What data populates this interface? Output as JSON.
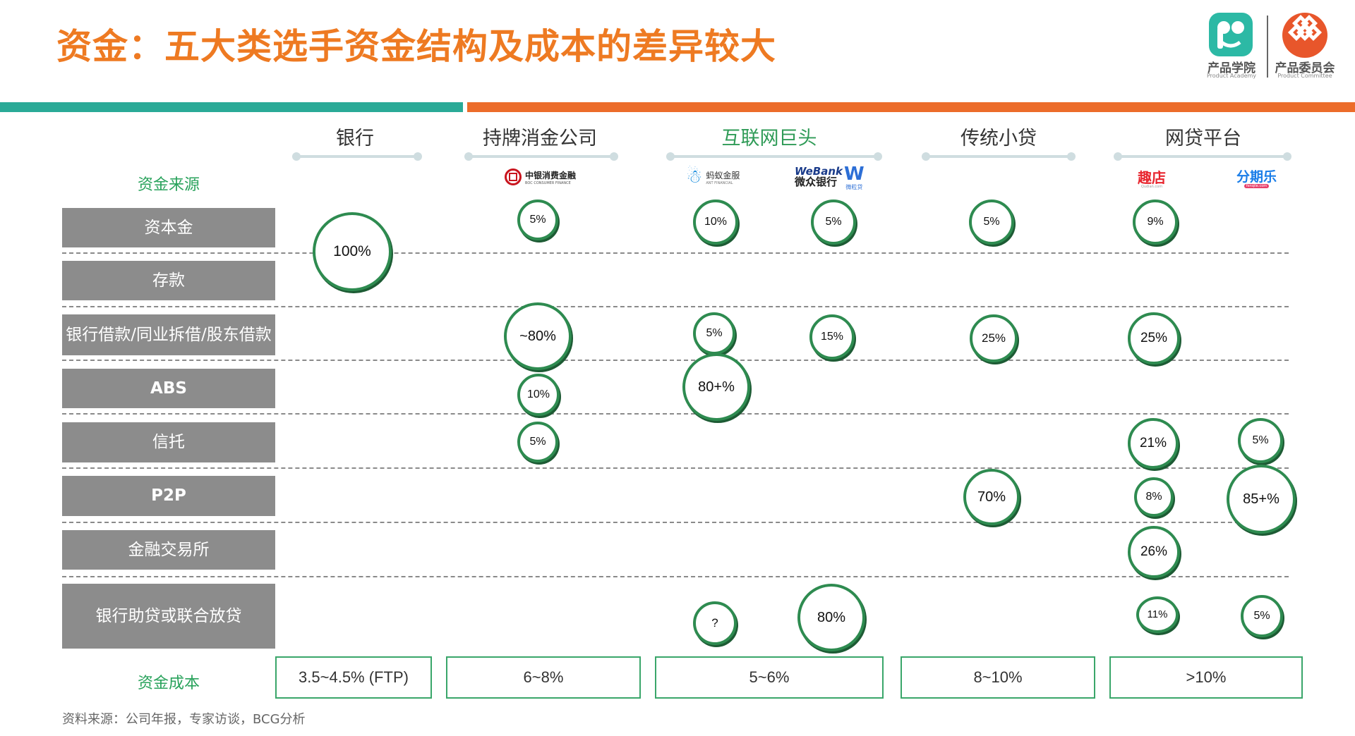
{
  "title": "资金：五大类选手资金结构及成本的差异较大",
  "branding": {
    "academy_name": "产品学院",
    "academy_en": "Product Academy",
    "committee_name": "产品委员会",
    "committee_en": "Product Committee"
  },
  "categories": [
    "银行",
    "持牌消金公司",
    "互联网巨头",
    "传统小贷",
    "网贷平台"
  ],
  "labels": {
    "source_header": "资金来源",
    "cost_header": "资金成本"
  },
  "logos": {
    "boc": {
      "cn": "中银消费金融",
      "en": "BOC CONSUMER FINANCE"
    },
    "ant": {
      "cn": "蚂蚁金服",
      "en": "ANT FINANCIAL"
    },
    "webank": {
      "en": "WeBank",
      "cn": "微众银行"
    },
    "weilidai": {
      "mark": "W",
      "cn": "微粒贷"
    },
    "qudian": {
      "cn": "趣店",
      "en": "Qudian.com"
    },
    "fenqile": {
      "cn": "分期乐",
      "en": "fenqile.com"
    }
  },
  "rows": [
    "资本金",
    "存款",
    "银行借款/同业拆借/股东借款",
    "ABS",
    "信托",
    "P2P",
    "金融交易所",
    "银行助贷或联合放贷"
  ],
  "bubbles": {
    "bank": "100%",
    "boc_capital": "5%",
    "ant_capital": "10%",
    "webank_capital": "5%",
    "micro_capital": "5%",
    "qudian_capital": "9%",
    "boc_loans": "~80%",
    "ant_loans": "5%",
    "webank_loans": "15%",
    "micro_loans": "25%",
    "qudian_loans": "25%",
    "boc_abs": "10%",
    "ant_abs": "80+%",
    "boc_trust": "5%",
    "qudian_trust": "21%",
    "fenqile_trust": "5%",
    "micro_p2p": "70%",
    "qudian_p2p": "8%",
    "fenqile_p2p": "85+%",
    "qudian_exchange": "26%",
    "ant_joint": "?",
    "webank_joint": "80%",
    "qudian_joint": "11%",
    "fenqile_joint": "5%"
  },
  "costs": [
    "3.5~4.5% (FTP)",
    "6~8%",
    "5~6%",
    "8~10%",
    ">10%"
  ],
  "source": "资料来源：公司年报，专家访谈，BCG分析",
  "colors": {
    "title": "#ee7a22",
    "teal_bar": "#2aaa97",
    "orange_bar": "#ec6c2a",
    "bubble_border": "#2e8b50",
    "label_green": "#28a25b",
    "row_gray": "#8c8c8c"
  }
}
